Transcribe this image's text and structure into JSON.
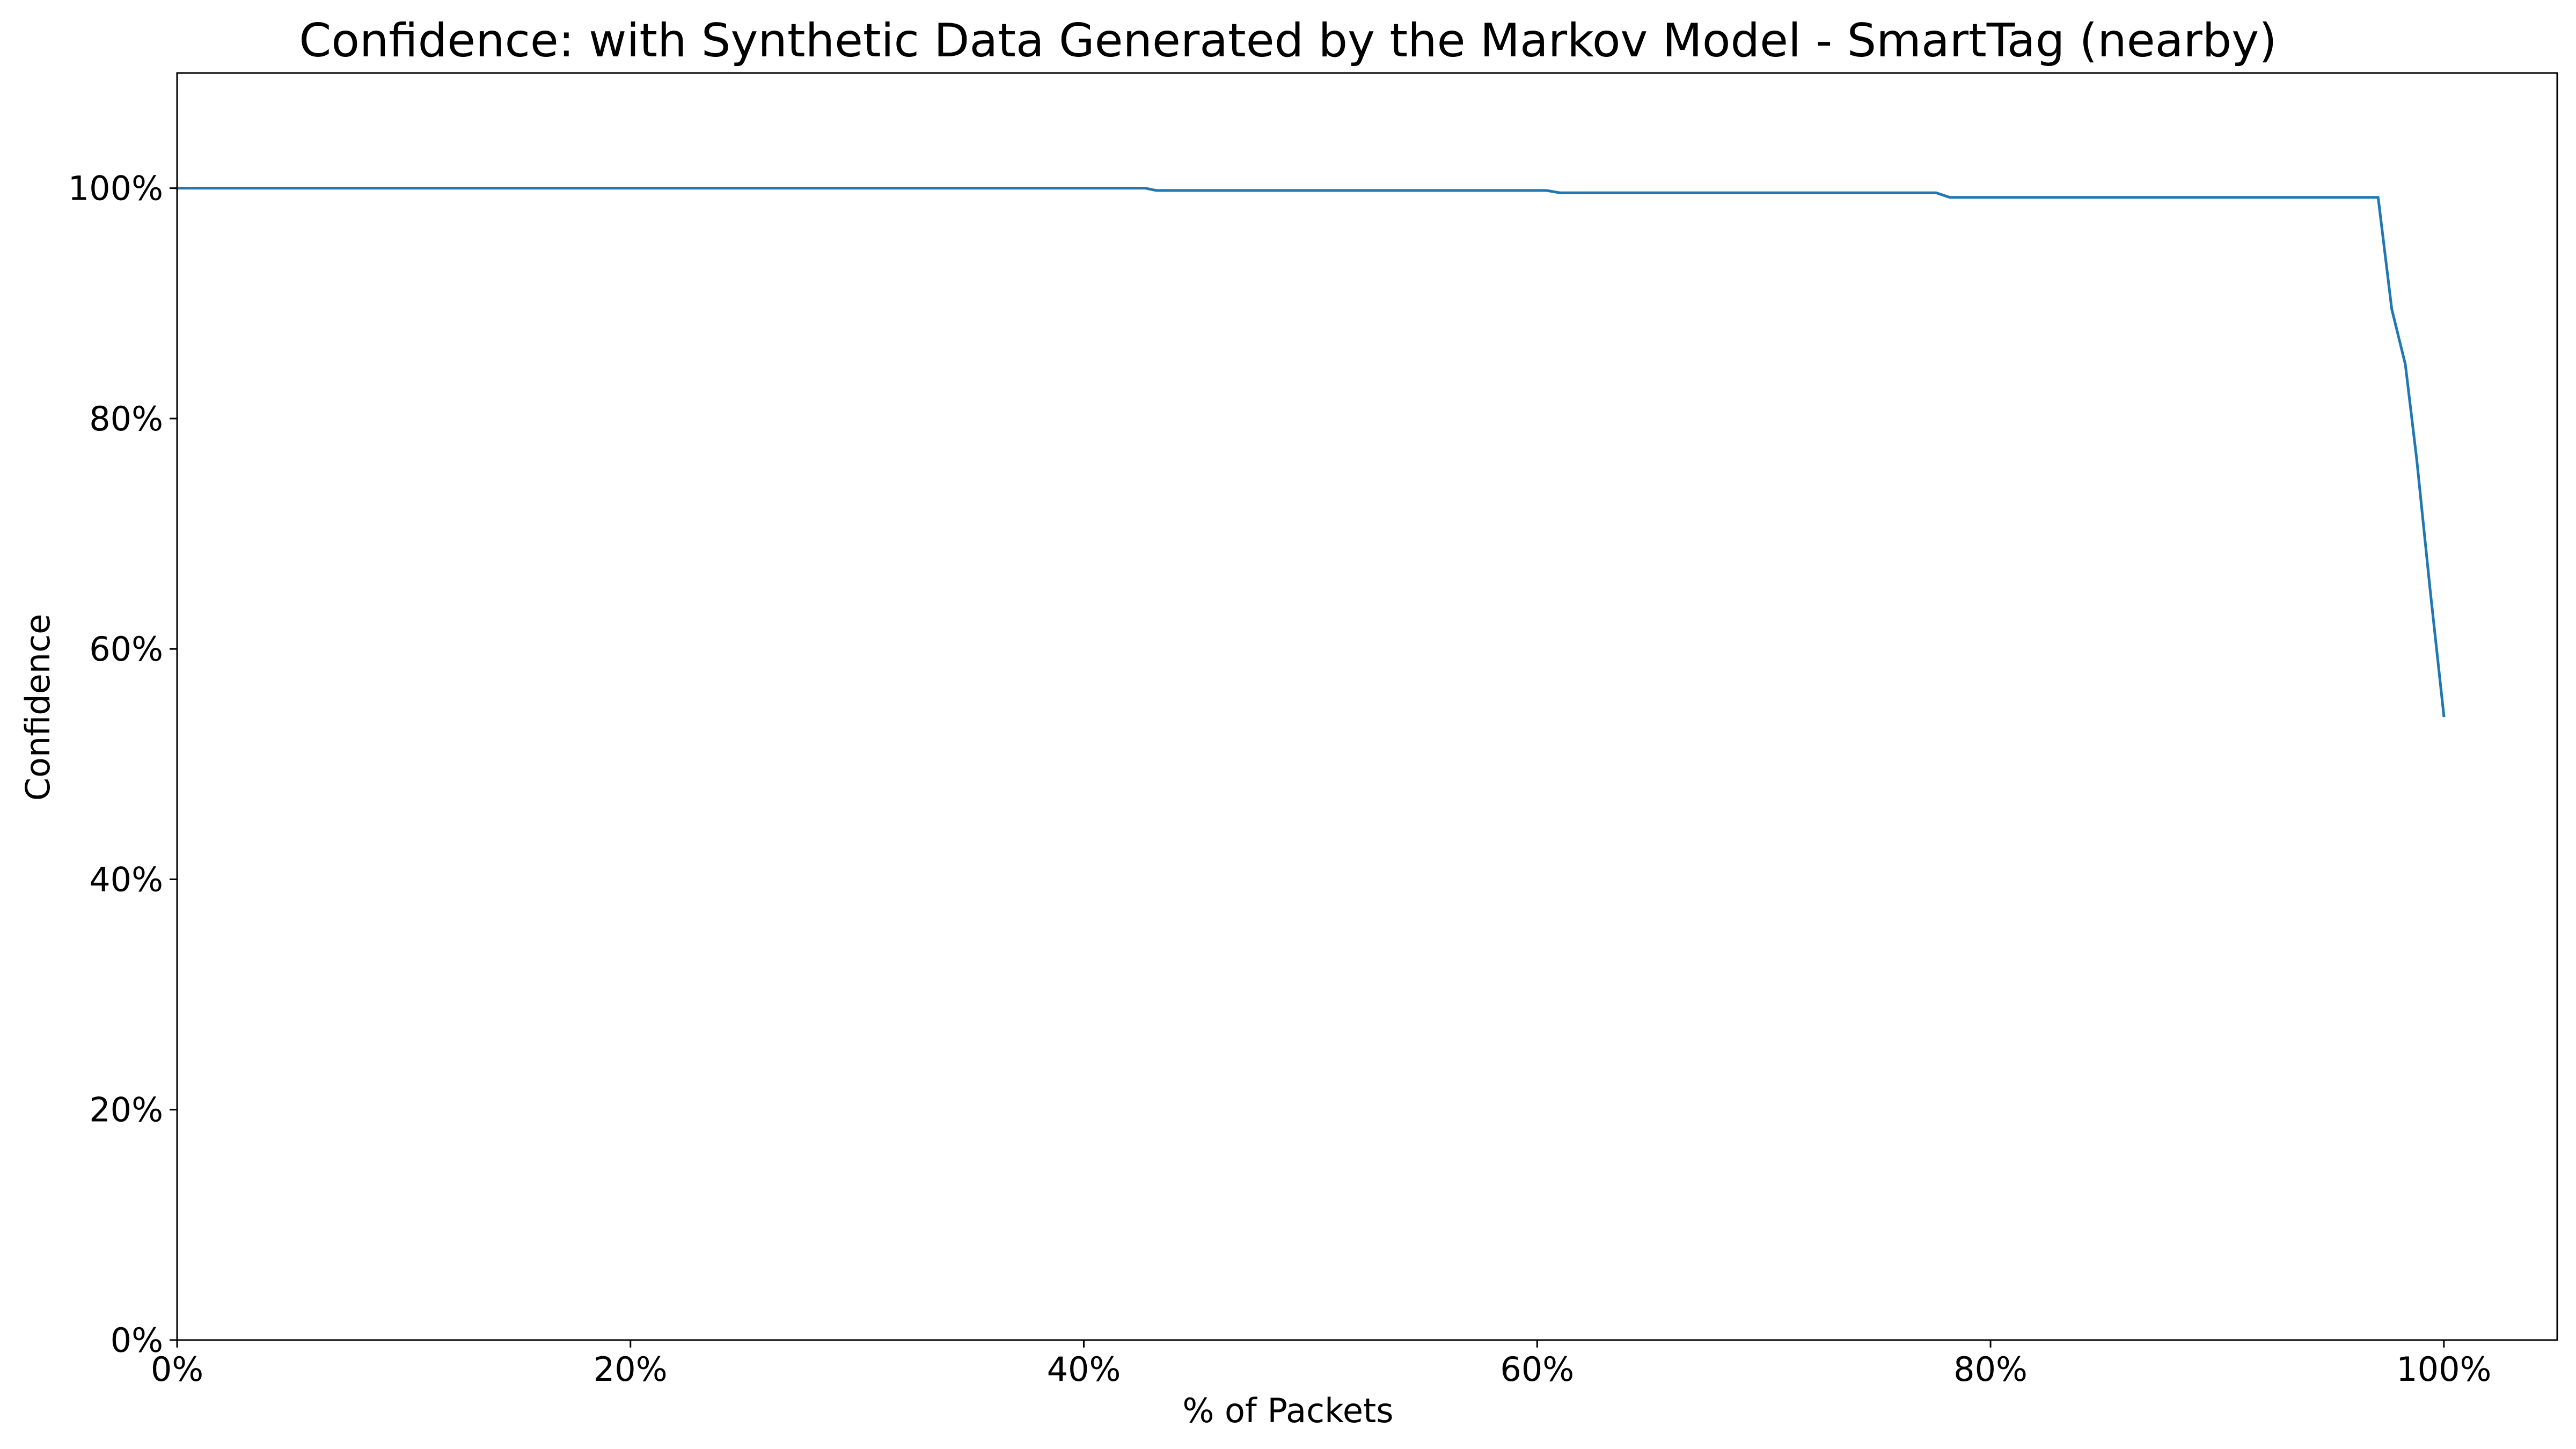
{
  "chart_data": {
    "type": "line",
    "title": "Confidence: with Synthetic Data Generated by the Markov Model - SmartTag (nearby)",
    "xlabel": "% of Packets",
    "ylabel": "Confidence",
    "xlim": [
      0,
      105
    ],
    "ylim": [
      0,
      110
    ],
    "x_ticks": [
      0,
      20,
      40,
      60,
      80,
      100
    ],
    "x_tick_labels": [
      "0%",
      "20%",
      "40%",
      "60%",
      "80%",
      "100%"
    ],
    "y_ticks": [
      0,
      20,
      40,
      60,
      80,
      100
    ],
    "y_tick_labels": [
      "0%",
      "20%",
      "40%",
      "60%",
      "80%",
      "100%"
    ],
    "grid": false,
    "series": [
      {
        "color": "#1f77b4",
        "x": [
          0,
          42.7,
          43.2,
          60.4,
          61.0,
          77.6,
          78.2,
          97.1,
          97.7,
          98.3,
          98.8,
          99.4,
          100
        ],
        "y": [
          100,
          100,
          99.8,
          99.8,
          99.6,
          99.6,
          99.2,
          99.2,
          89.5,
          84.7,
          76.5,
          65.0,
          54.2
        ]
      }
    ]
  }
}
